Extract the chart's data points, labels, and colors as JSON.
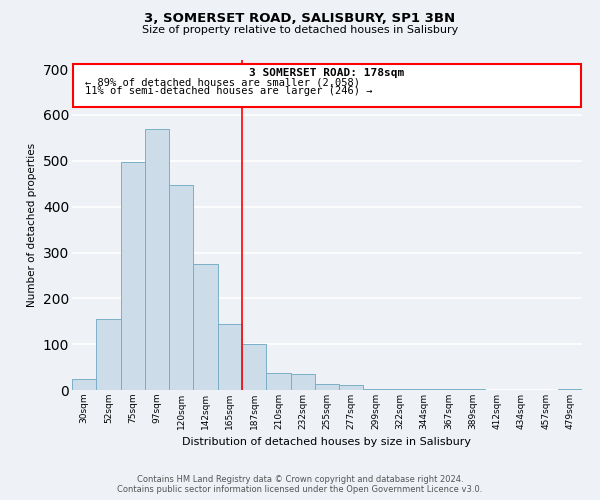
{
  "title_line1": "3, SOMERSET ROAD, SALISBURY, SP1 3BN",
  "title_line2": "Size of property relative to detached houses in Salisbury",
  "xlabel": "Distribution of detached houses by size in Salisbury",
  "ylabel": "Number of detached properties",
  "bar_color": "#ccdce8",
  "bar_edge_color": "#7aafc8",
  "categories": [
    "30sqm",
    "52sqm",
    "75sqm",
    "97sqm",
    "120sqm",
    "142sqm",
    "165sqm",
    "187sqm",
    "210sqm",
    "232sqm",
    "255sqm",
    "277sqm",
    "299sqm",
    "322sqm",
    "344sqm",
    "367sqm",
    "389sqm",
    "412sqm",
    "434sqm",
    "457sqm",
    "479sqm"
  ],
  "values": [
    25,
    155,
    497,
    570,
    448,
    275,
    145,
    100,
    37,
    35,
    13,
    10,
    3,
    3,
    3,
    3,
    2,
    1,
    0,
    0,
    3
  ],
  "ylim": [
    0,
    720
  ],
  "yticks": [
    0,
    100,
    200,
    300,
    400,
    500,
    600,
    700
  ],
  "annotation_line1": "3 SOMERSET ROAD: 178sqm",
  "annotation_line2": "← 89% of detached houses are smaller (2,058)",
  "annotation_line3": "11% of semi-detached houses are larger (246) →",
  "footer_line1": "Contains HM Land Registry data © Crown copyright and database right 2024.",
  "footer_line2": "Contains public sector information licensed under the Open Government Licence v3.0.",
  "background_color": "#eef2f7",
  "grid_color": "#ffffff"
}
